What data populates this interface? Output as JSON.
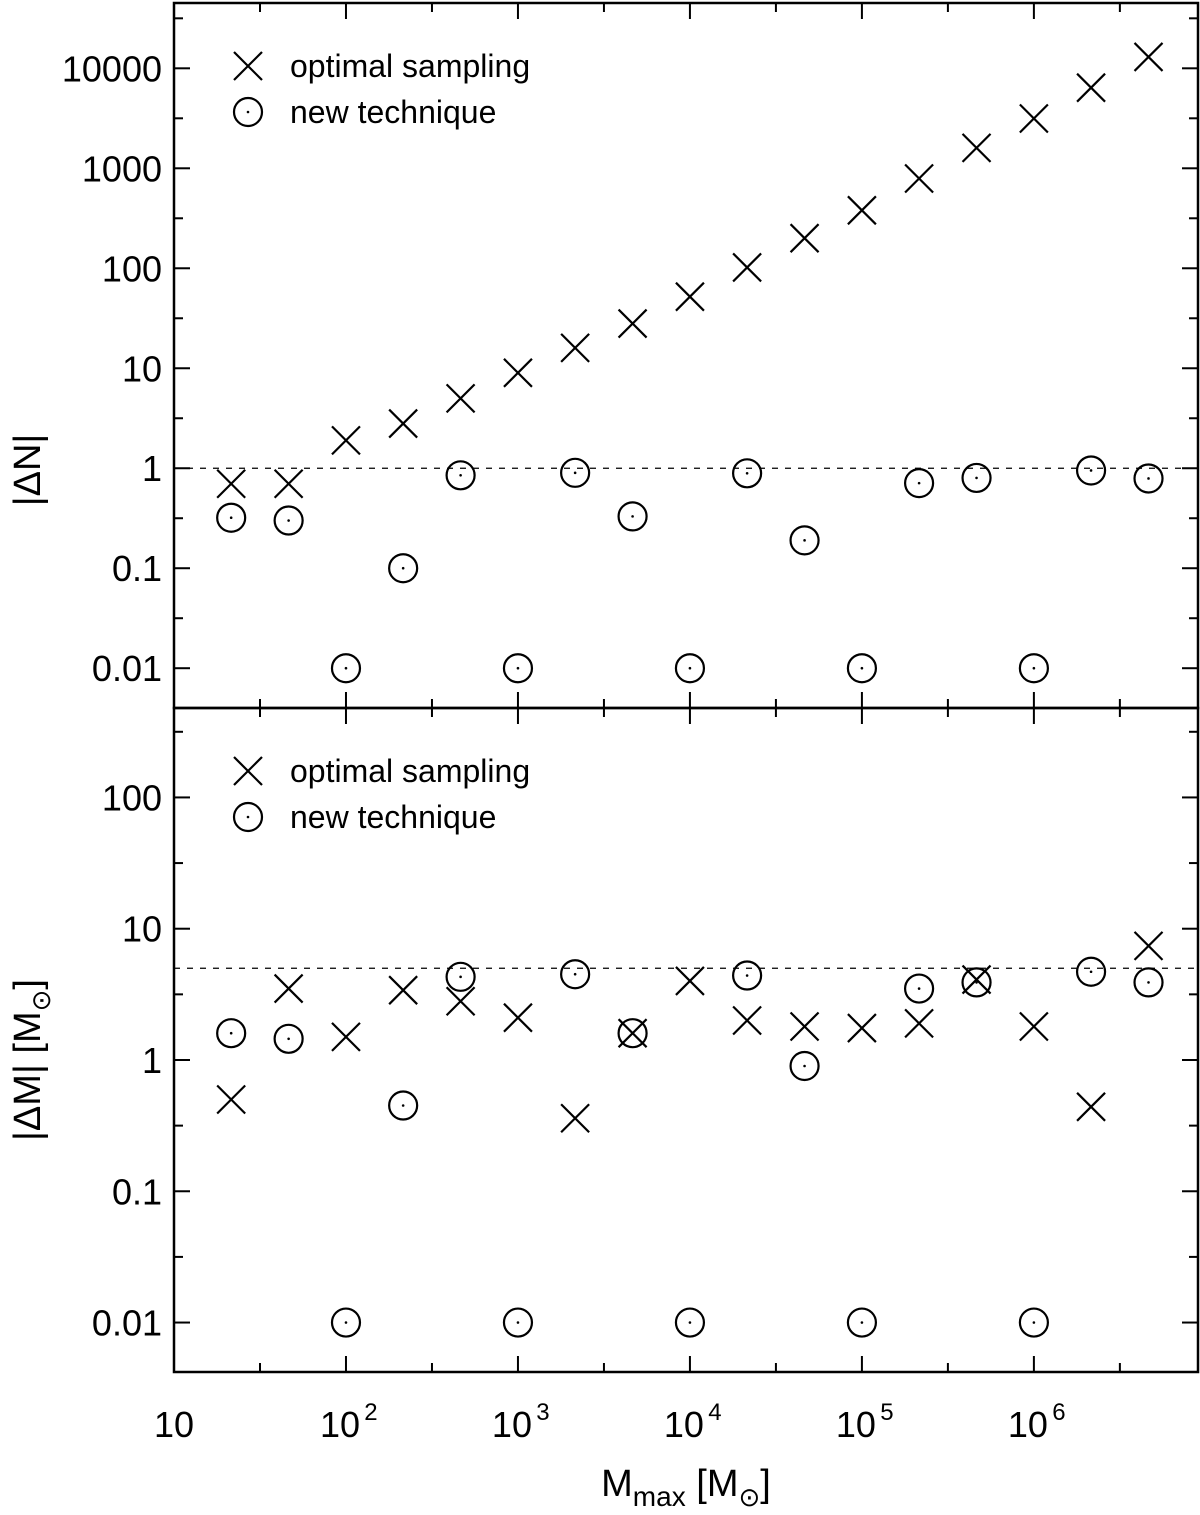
{
  "chart_data": [
    {
      "type": "scatter",
      "panel": "top",
      "ylabel": "|ΔN|",
      "yscale": "log",
      "ylim": [
        0.004,
        45000
      ],
      "yticks": [
        0.01,
        0.1,
        1,
        10,
        100,
        1000,
        10000
      ],
      "ytick_labels": [
        "0.01",
        "0.1",
        "1",
        "10",
        "100",
        "1000",
        "10000"
      ],
      "reference_line": 1,
      "legend_position": "top-left",
      "series": [
        {
          "name": "optimal sampling",
          "marker": "cross",
          "x": [
            21.5,
            46.4,
            100,
            215,
            464,
            1000,
            2150,
            4640,
            10000,
            21500,
            46400,
            100000,
            215000,
            464000,
            1000000,
            2150000,
            4640000
          ],
          "y": [
            0.7,
            0.7,
            1.9,
            2.8,
            5,
            9,
            16,
            28,
            52,
            102,
            200,
            380,
            790,
            1600,
            3150,
            6400,
            13000
          ]
        },
        {
          "name": "new technique",
          "marker": "circle",
          "x": [
            21.5,
            46.4,
            100,
            215,
            464,
            1000,
            2150,
            4640,
            10000,
            21500,
            46400,
            100000,
            215000,
            464000,
            1000000,
            2150000,
            4640000
          ],
          "y": [
            0.32,
            0.3,
            0.01,
            0.1,
            0.85,
            0.01,
            0.9,
            0.33,
            0.01,
            0.89,
            0.19,
            0.01,
            0.71,
            0.8,
            0.01,
            0.95,
            0.79
          ]
        }
      ]
    },
    {
      "type": "scatter",
      "panel": "bottom",
      "ylabel": "|ΔM| [M",
      "ylabel_unit": "⊙",
      "ylabel_close": "]",
      "yscale": "log",
      "ylim": [
        0.0042,
        480
      ],
      "yticks": [
        0.01,
        0.1,
        1,
        10,
        100
      ],
      "ytick_labels": [
        "0.01",
        "0.1",
        "1",
        "10",
        "100"
      ],
      "reference_line": 5,
      "legend_position": "top-left",
      "series": [
        {
          "name": "optimal sampling",
          "marker": "cross",
          "x": [
            21.5,
            46.4,
            100,
            215,
            464,
            1000,
            2150,
            4640,
            10000,
            21500,
            46400,
            100000,
            215000,
            464000,
            1000000,
            2150000,
            4640000
          ],
          "y": [
            0.5,
            3.5,
            1.5,
            3.4,
            2.8,
            2.1,
            0.36,
            1.6,
            4,
            2,
            1.8,
            1.75,
            1.9,
            4.1,
            1.8,
            0.44,
            7.4
          ]
        },
        {
          "name": "new technique",
          "marker": "circle",
          "x": [
            21.5,
            46.4,
            100,
            215,
            464,
            1000,
            2150,
            4640,
            10000,
            21500,
            46400,
            100000,
            215000,
            464000,
            1000000,
            2150000,
            4640000
          ],
          "y": [
            1.6,
            1.45,
            0.01,
            0.45,
            4.3,
            0.01,
            4.5,
            1.6,
            0.01,
            4.4,
            0.9,
            0.01,
            3.5,
            3.9,
            0.01,
            4.7,
            3.9
          ]
        }
      ]
    }
  ],
  "xaxis": {
    "scale": "log",
    "xlim": [
      10,
      9000000
    ],
    "tick_labels": [
      {
        "value": 10,
        "base": "10",
        "exp": ""
      },
      {
        "value": 100,
        "base": "10",
        "exp": "2"
      },
      {
        "value": 1000,
        "base": "10",
        "exp": "3"
      },
      {
        "value": 10000,
        "base": "10",
        "exp": "4"
      },
      {
        "value": 100000,
        "base": "10",
        "exp": "5"
      },
      {
        "value": 1000000,
        "base": "10",
        "exp": "6"
      }
    ],
    "label_main": "M",
    "label_sub": "max",
    "label_unit_open": "[M",
    "label_unit_sub": "⊙",
    "label_unit_close": "]"
  }
}
